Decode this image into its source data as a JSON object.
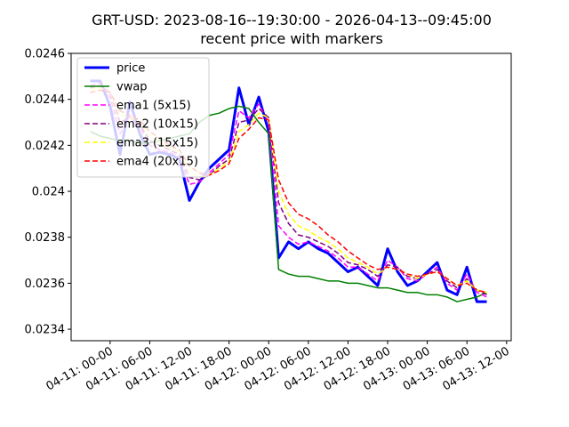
{
  "chart_data": {
    "type": "line",
    "title": "GRT-USD: 2023-08-16--19:30:00 - 2026-04-13--09:45:00",
    "subtitle": "recent price with markers",
    "x": [
      -3,
      -1.5,
      0,
      1.5,
      3,
      4.5,
      6,
      7.5,
      9,
      10.5,
      12,
      13.5,
      15,
      16.5,
      18,
      19.5,
      21,
      22.5,
      24,
      25.5,
      27,
      28.5,
      30,
      31.5,
      33,
      34.5,
      36,
      37.5,
      39,
      40.5,
      42,
      43.5,
      45,
      46.5,
      48,
      49.5,
      51,
      52.5,
      54,
      55.5,
      57
    ],
    "xlim": [
      -5.9,
      60.7
    ],
    "xticks": [
      {
        "value": 0,
        "label": "04-11: 00-00"
      },
      {
        "value": 6,
        "label": "04-11: 06-00"
      },
      {
        "value": 12,
        "label": "04-11: 12-00"
      },
      {
        "value": 18,
        "label": "04-11: 18-00"
      },
      {
        "value": 24,
        "label": "04-12: 00-00"
      },
      {
        "value": 30,
        "label": "04-12: 06-00"
      },
      {
        "value": 36,
        "label": "04-12: 12-00"
      },
      {
        "value": 42,
        "label": "04-12: 18-00"
      },
      {
        "value": 48,
        "label": "04-13: 00-00"
      },
      {
        "value": 54,
        "label": "04-13: 06-00"
      },
      {
        "value": 60,
        "label": "04-13: 12-00"
      }
    ],
    "ylim": [
      0.02335,
      0.0246
    ],
    "yticks": [
      0.0234,
      0.0236,
      0.0238,
      0.024,
      0.0242,
      0.0244,
      0.0246
    ],
    "legend": "upper left",
    "series": [
      {
        "name": "price",
        "color": "#0000ff",
        "width": 3,
        "style": "solid",
        "values": [
          0.02448,
          0.02448,
          0.02437,
          0.02416,
          0.02439,
          0.02425,
          0.02416,
          0.02417,
          0.02416,
          0.02414,
          0.02396,
          0.02404,
          0.0241,
          0.02414,
          0.02418,
          0.02445,
          0.02429,
          0.02441,
          0.02426,
          0.02371,
          0.02378,
          0.02375,
          0.02378,
          0.02375,
          0.02373,
          0.02369,
          0.02365,
          0.02367,
          0.02363,
          0.02359,
          0.02375,
          0.02365,
          0.02359,
          0.02361,
          0.02365,
          0.02369,
          0.02357,
          0.02355,
          0.02367,
          0.02352,
          0.02352
        ]
      },
      {
        "name": "vwap",
        "color": "#008000",
        "width": 1.5,
        "style": "solid",
        "values": [
          0.02426,
          0.02424,
          0.02423,
          0.02422,
          0.02422,
          0.02421,
          0.02421,
          0.02422,
          0.02423,
          0.02424,
          0.02425,
          0.0243,
          0.02433,
          0.02434,
          0.02436,
          0.02437,
          0.02436,
          0.0243,
          0.02425,
          0.02366,
          0.02364,
          0.02363,
          0.02363,
          0.02362,
          0.02361,
          0.02361,
          0.0236,
          0.0236,
          0.02359,
          0.02358,
          0.02358,
          0.02357,
          0.02356,
          0.02356,
          0.02355,
          0.02355,
          0.02354,
          0.02352,
          0.02353,
          0.02354,
          0.02356
        ]
      },
      {
        "name": "ema1 (5x15)",
        "color": "#ff00ff",
        "width": 1.5,
        "style": "dashed",
        "values": [
          0.02446,
          0.02447,
          0.02441,
          0.02425,
          0.02433,
          0.02428,
          0.0242,
          0.02418,
          0.02417,
          0.02415,
          0.02403,
          0.02404,
          0.02408,
          0.02412,
          0.02416,
          0.02435,
          0.02432,
          0.02438,
          0.0243,
          0.02385,
          0.0238,
          0.02377,
          0.02378,
          0.02376,
          0.02374,
          0.02371,
          0.02367,
          0.02367,
          0.02364,
          0.02361,
          0.0237,
          0.02367,
          0.02362,
          0.02361,
          0.02364,
          0.02367,
          0.0236,
          0.02357,
          0.02364,
          0.02356,
          0.02354
        ]
      },
      {
        "name": "ema2 (10x15)",
        "color": "#800080",
        "width": 1.5,
        "style": "dashed",
        "values": [
          0.02445,
          0.02446,
          0.02443,
          0.0243,
          0.02432,
          0.02429,
          0.02422,
          0.0242,
          0.02418,
          0.02416,
          0.02406,
          0.02405,
          0.02407,
          0.02411,
          0.02414,
          0.0243,
          0.02431,
          0.02436,
          0.02432,
          0.02395,
          0.02386,
          0.02381,
          0.0238,
          0.02378,
          0.02376,
          0.02373,
          0.02369,
          0.02368,
          0.02366,
          0.02363,
          0.02368,
          0.02367,
          0.02363,
          0.02362,
          0.02364,
          0.02366,
          0.02361,
          0.02358,
          0.02362,
          0.02357,
          0.02355
        ]
      },
      {
        "name": "ema3 (15x15)",
        "color": "#ffff00",
        "width": 1.5,
        "style": "dashed",
        "values": [
          0.02444,
          0.02445,
          0.02443,
          0.02433,
          0.02432,
          0.0243,
          0.02424,
          0.02421,
          0.02419,
          0.02417,
          0.02409,
          0.02406,
          0.02407,
          0.0241,
          0.02413,
          0.02426,
          0.02429,
          0.02434,
          0.02432,
          0.024,
          0.0239,
          0.02385,
          0.02383,
          0.0238,
          0.02378,
          0.02375,
          0.02371,
          0.02369,
          0.02367,
          0.02364,
          0.02367,
          0.02366,
          0.02364,
          0.02362,
          0.02364,
          0.02365,
          0.02362,
          0.02359,
          0.02361,
          0.02357,
          0.02356
        ]
      },
      {
        "name": "ema4 (20x15)",
        "color": "#ff0000",
        "width": 1.5,
        "style": "dashed",
        "values": [
          0.02443,
          0.02444,
          0.02443,
          0.02435,
          0.02433,
          0.02431,
          0.02426,
          0.02423,
          0.0242,
          0.02418,
          0.02411,
          0.02408,
          0.02407,
          0.02409,
          0.02412,
          0.02423,
          0.02427,
          0.02432,
          0.02431,
          0.02405,
          0.02395,
          0.0239,
          0.02388,
          0.02385,
          0.02381,
          0.02378,
          0.02374,
          0.02371,
          0.02368,
          0.02366,
          0.02367,
          0.02366,
          0.02364,
          0.02363,
          0.02364,
          0.02365,
          0.02362,
          0.02359,
          0.0236,
          0.02357,
          0.02356
        ]
      }
    ]
  }
}
